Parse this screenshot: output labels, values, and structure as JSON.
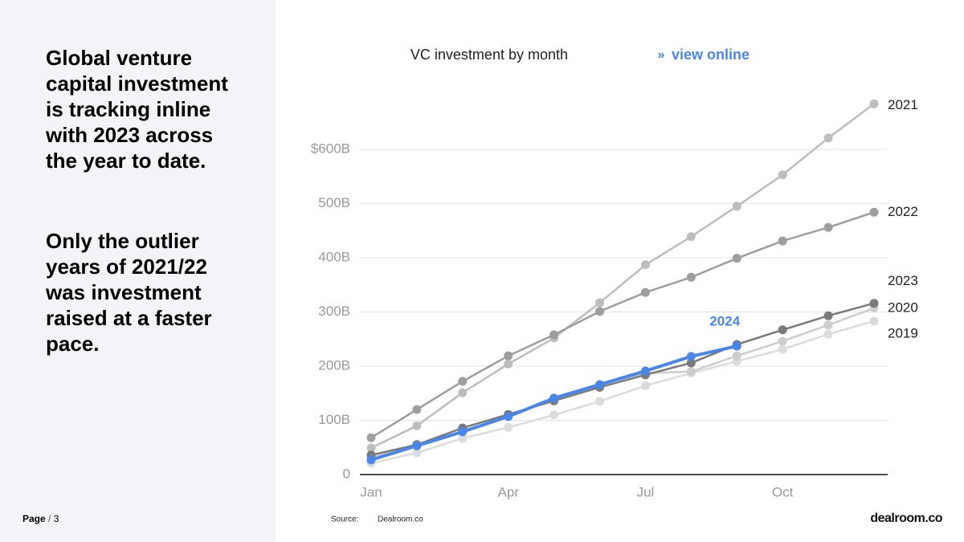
{
  "text": {
    "paragraphs": [
      "Global venture capital investment is tracking inline with 2023 across the year to date.",
      "Only the outlier years of 2021/22 was investment raised at a faster pace."
    ]
  },
  "footer": {
    "page_label": "Page",
    "separator": "/",
    "page_number": "3",
    "source_label": "Source:",
    "source": "Dealroom.co",
    "logo": "dealroom.co"
  },
  "chart_data": {
    "type": "line",
    "title": "VC investment by month",
    "link_prefix": "»",
    "link": "view online",
    "categories": [
      "Jan",
      null,
      null,
      "Apr",
      null,
      null,
      "Jul",
      null,
      null,
      "Oct",
      null,
      null
    ],
    "ylim": [
      0,
      700
    ],
    "yticks": [
      0,
      {
        "value": 100,
        "label": "100B"
      },
      {
        "value": 200,
        "label": "200B"
      },
      {
        "value": 300,
        "label": "300B"
      },
      {
        "value": 400,
        "label": "400B"
      },
      {
        "value": 500,
        "label": "500B"
      },
      {
        "value": 600,
        "label": "$600B"
      }
    ],
    "grid": true,
    "series": [
      {
        "name": "2019",
        "color": "#dcdcdc",
        "values": [
          21,
          40,
          67,
          87,
          110,
          135,
          164,
          187,
          209,
          231,
          259,
          283
        ]
      },
      {
        "name": "2020",
        "color": "#cdcdcd",
        "values": [
          31,
          56,
          79,
          108,
          141,
          166,
          187,
          190,
          219,
          246,
          276,
          307
        ]
      },
      {
        "name": "2021",
        "color": "#bdbdbd",
        "values": [
          49,
          90,
          151,
          204,
          252,
          317,
          387,
          439,
          495,
          553,
          621,
          684
        ]
      },
      {
        "name": "2022",
        "color": "#9e9e9e",
        "values": [
          68,
          120,
          172,
          219,
          258,
          301,
          336,
          364,
          399,
          431,
          456,
          484
        ]
      },
      {
        "name": "2023",
        "color": "#7a7a7a",
        "values": [
          36,
          55,
          86,
          111,
          136,
          161,
          184,
          206,
          240,
          267,
          293,
          316
        ]
      },
      {
        "name": "2024",
        "color": "#4a86e8",
        "values": [
          27,
          53,
          79,
          107,
          141,
          166,
          191,
          218,
          237,
          null,
          null,
          null
        ]
      }
    ]
  }
}
